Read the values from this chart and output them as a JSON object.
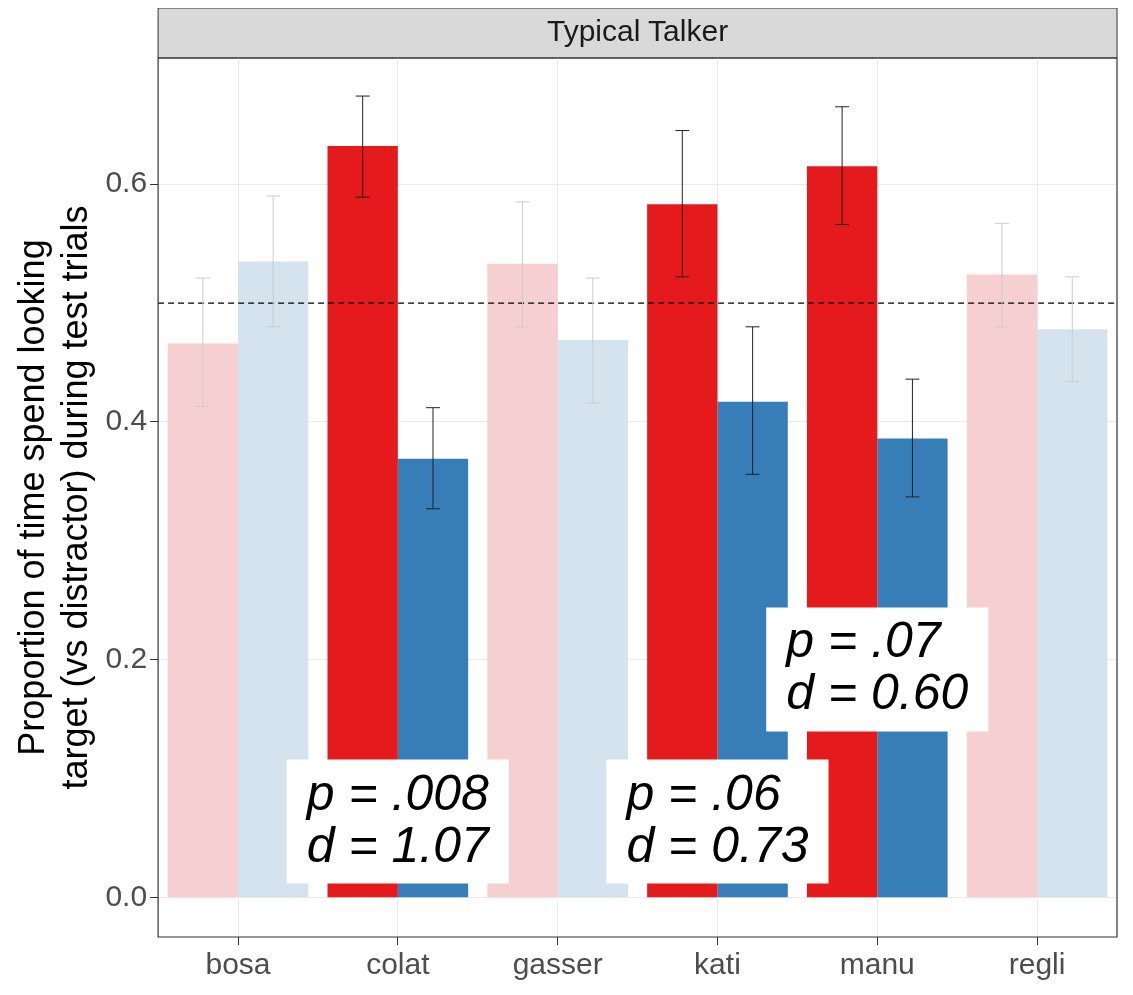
{
  "chart_data": {
    "type": "bar",
    "title": "Typical Talker",
    "ylabel": "Proportion of time spend looking\ntarget (vs distractor) during test trials",
    "categories": [
      "bosa",
      "colat",
      "gasser",
      "kati",
      "manu",
      "regli"
    ],
    "series": [
      {
        "colors": [
          "#f6d0d1",
          "#e41a1c",
          "#f6d0d1",
          "#e41a1c",
          "#e41a1c",
          "#f6d0d1"
        ],
        "values": [
          0.466,
          0.632,
          0.533,
          0.583,
          0.615,
          0.524
        ],
        "errors": [
          [
            0.413,
            0.521
          ],
          [
            0.589,
            0.674
          ],
          [
            0.48,
            0.585
          ],
          [
            0.522,
            0.645
          ],
          [
            0.566,
            0.665
          ],
          [
            0.48,
            0.567
          ]
        ]
      },
      {
        "colors": [
          "#d5e3ee",
          "#377eb8",
          "#d5e3ee",
          "#377eb8",
          "#377eb8",
          "#d5e3ee"
        ],
        "values": [
          0.535,
          0.369,
          0.469,
          0.417,
          0.386,
          0.478
        ],
        "errors": [
          [
            0.48,
            0.59
          ],
          [
            0.327,
            0.412
          ],
          [
            0.416,
            0.521
          ],
          [
            0.356,
            0.48
          ],
          [
            0.337,
            0.436
          ],
          [
            0.434,
            0.522
          ]
        ]
      }
    ],
    "ylim": [
      -0.033,
      0.706
    ],
    "yticks": [
      {
        "value": 0,
        "label": "0.0"
      },
      0.2,
      0.4,
      0.6
    ],
    "grid": true,
    "legend": false,
    "ref_lines": [
      {
        "axis": "y",
        "value": 0.5,
        "line_style": "dashed",
        "color": "#000000"
      }
    ],
    "annotations": [
      {
        "text": "p = .008\nd = 1.07",
        "x": "colat",
        "y": 0.064
      },
      {
        "text": "p = .06\nd = 0.73",
        "x": "kati",
        "y": 0.064
      },
      {
        "text": "p = .07\nd = 0.60",
        "x": "manu",
        "y": 0.192
      }
    ]
  }
}
